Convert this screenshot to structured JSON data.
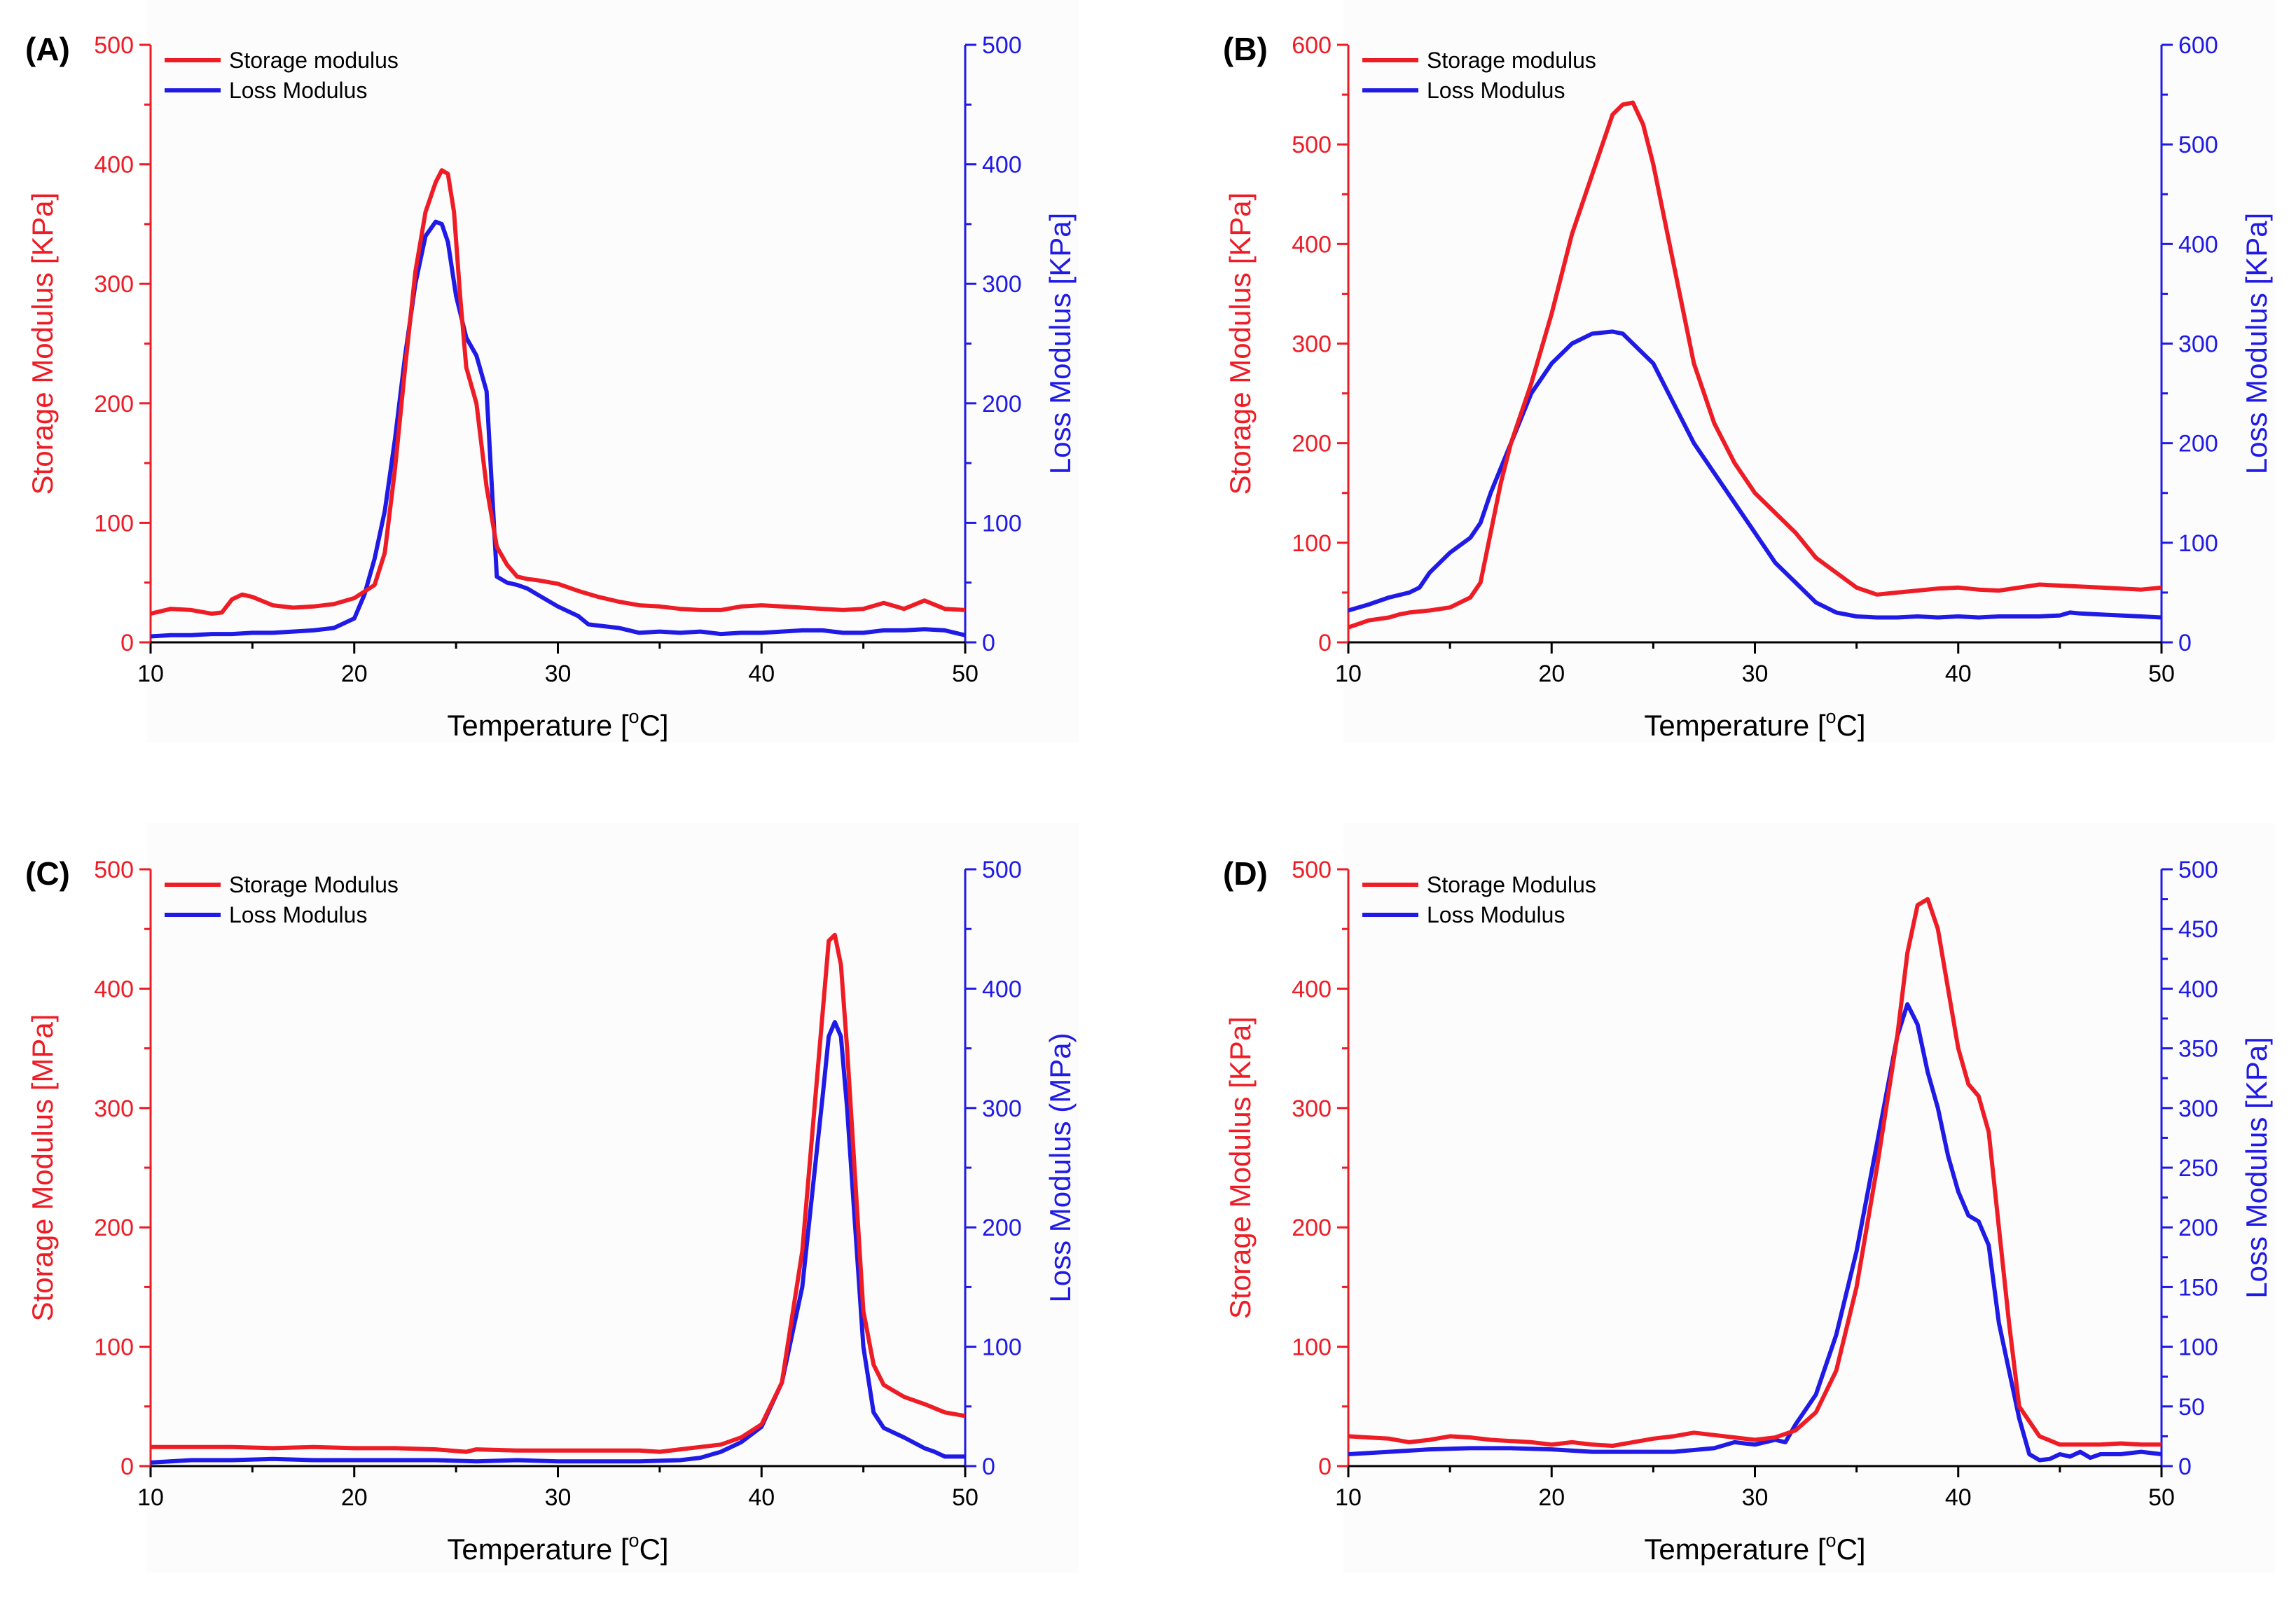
{
  "colors": {
    "storage": "#ee1c25",
    "loss": "#1f1ae6",
    "axis": "#000000"
  },
  "chart_data": [
    {
      "panel": "(A)",
      "type": "line",
      "xlabel": "Temperature [oC]",
      "xlabel_main": "Temperature [",
      "xlabel_sup": "o",
      "xlabel_end": "C]",
      "ylabel_left": "Storage Modulus [KPa]",
      "ylabel_right": "Loss Modulus [KPa]",
      "xlim": [
        10,
        50
      ],
      "ylim_left": [
        0,
        500
      ],
      "ylim_right": [
        0,
        500
      ],
      "xticks": [
        10,
        20,
        30,
        40,
        50
      ],
      "yticks_left": [
        0,
        100,
        200,
        300,
        400,
        500
      ],
      "yticks_right": [
        0,
        100,
        200,
        300,
        400,
        500
      ],
      "legend": "top-left",
      "grid": false,
      "series": [
        {
          "name": "Storage modulus",
          "axis": "left",
          "color": "#ee1c25",
          "x": [
            10,
            11,
            12,
            13,
            13.5,
            14,
            14.5,
            15,
            16,
            17,
            18,
            19,
            20,
            21,
            21.5,
            22,
            22.5,
            23,
            23.5,
            24,
            24.3,
            24.6,
            24.9,
            25.2,
            25.5,
            26,
            26.5,
            27,
            27.5,
            28,
            28.5,
            29,
            30,
            31,
            32,
            33,
            34,
            35,
            36,
            37,
            38,
            39,
            40,
            41,
            42,
            43,
            44,
            45,
            46,
            47,
            48,
            49,
            50
          ],
          "y": [
            24,
            28,
            27,
            24,
            25,
            36,
            40,
            38,
            31,
            29,
            30,
            32,
            37,
            48,
            75,
            145,
            230,
            310,
            360,
            385,
            395,
            392,
            360,
            290,
            230,
            200,
            130,
            80,
            65,
            55,
            53,
            52,
            49,
            43,
            38,
            34,
            31,
            30,
            28,
            27,
            27,
            30,
            31,
            30,
            29,
            28,
            27,
            28,
            33,
            28,
            35,
            28,
            27
          ]
        },
        {
          "name": "Loss Modulus",
          "axis": "right",
          "color": "#1f1ae6",
          "x": [
            10,
            11,
            12,
            13,
            14,
            15,
            16,
            17,
            18,
            19,
            20,
            20.5,
            21,
            21.5,
            22,
            22.5,
            23,
            23.5,
            24,
            24.3,
            24.6,
            25,
            25.5,
            26,
            26.5,
            27,
            27.5,
            28,
            28.5,
            29,
            30,
            31,
            31.5,
            32,
            33,
            34,
            35,
            36,
            37,
            38,
            39,
            40,
            41,
            42,
            43,
            44,
            45,
            46,
            47,
            48,
            49,
            50
          ],
          "y": [
            5,
            6,
            6,
            7,
            7,
            8,
            8,
            9,
            10,
            12,
            20,
            40,
            70,
            110,
            170,
            240,
            300,
            340,
            352,
            350,
            335,
            290,
            255,
            240,
            210,
            55,
            50,
            48,
            45,
            40,
            30,
            22,
            15,
            14,
            12,
            8,
            9,
            8,
            9,
            7,
            8,
            8,
            9,
            10,
            10,
            8,
            8,
            10,
            10,
            11,
            10,
            6
          ]
        }
      ]
    },
    {
      "panel": "(B)",
      "type": "line",
      "xlabel": "Temperature [oC]",
      "xlabel_main": "Temperature [",
      "xlabel_sup": "o",
      "xlabel_end": "C]",
      "ylabel_left": "Storage Modulus [KPa]",
      "ylabel_right": "Loss Modulus [KPa]",
      "xlim": [
        10,
        50
      ],
      "ylim_left": [
        0,
        600
      ],
      "ylim_right": [
        0,
        600
      ],
      "xticks": [
        10,
        20,
        30,
        40,
        50
      ],
      "yticks_left": [
        0,
        100,
        200,
        300,
        400,
        500,
        600
      ],
      "yticks_right": [
        0,
        100,
        200,
        300,
        400,
        500,
        600
      ],
      "legend": "top-left",
      "grid": false,
      "series": [
        {
          "name": "Storage modulus",
          "axis": "left",
          "color": "#ee1c25",
          "x": [
            10,
            11,
            12,
            12.5,
            13,
            14,
            15,
            16,
            16.5,
            17,
            17.5,
            18,
            19,
            20,
            21,
            22,
            23,
            23.5,
            24,
            24.5,
            25,
            26,
            27,
            28,
            29,
            30,
            31,
            32,
            33,
            34,
            35,
            36,
            37,
            38,
            39,
            40,
            41,
            42,
            43,
            44,
            45,
            46,
            47,
            48,
            49,
            50
          ],
          "y": [
            15,
            22,
            25,
            28,
            30,
            32,
            35,
            45,
            60,
            110,
            160,
            200,
            260,
            330,
            410,
            470,
            530,
            540,
            542,
            520,
            480,
            380,
            280,
            220,
            180,
            150,
            130,
            110,
            85,
            70,
            55,
            48,
            50,
            52,
            54,
            55,
            53,
            52,
            55,
            58,
            57,
            56,
            55,
            54,
            53,
            55
          ]
        },
        {
          "name": "Loss Modulus",
          "axis": "right",
          "color": "#1f1ae6",
          "x": [
            10,
            11,
            12,
            13,
            13.5,
            14,
            15,
            16,
            16.5,
            17,
            18,
            19,
            20,
            21,
            22,
            23,
            23.5,
            24,
            25,
            26,
            27,
            28,
            29,
            30,
            31,
            32,
            33,
            34,
            35,
            36,
            37,
            38,
            39,
            40,
            41,
            42,
            43,
            44,
            45,
            45.5,
            46,
            47,
            48,
            49,
            50
          ],
          "y": [
            32,
            38,
            45,
            50,
            55,
            70,
            90,
            105,
            120,
            150,
            200,
            250,
            280,
            300,
            310,
            312,
            310,
            300,
            280,
            240,
            200,
            170,
            140,
            110,
            80,
            60,
            40,
            30,
            26,
            25,
            25,
            26,
            25,
            26,
            25,
            26,
            26,
            26,
            27,
            30,
            29,
            28,
            27,
            26,
            25
          ]
        }
      ]
    },
    {
      "panel": "(C)",
      "type": "line",
      "xlabel": "Temperature [oC]",
      "xlabel_main": "Temperature [",
      "xlabel_sup": "o",
      "xlabel_end": "C]",
      "ylabel_left": "Storage Modulus [MPa]",
      "ylabel_right": "Loss Modulus (MPa)",
      "xlim": [
        10,
        50
      ],
      "ylim_left": [
        0,
        500
      ],
      "ylim_right": [
        0,
        500
      ],
      "xticks": [
        10,
        20,
        30,
        40,
        50
      ],
      "yticks_left": [
        0,
        100,
        200,
        300,
        400,
        500
      ],
      "yticks_right": [
        0,
        100,
        200,
        300,
        400,
        500
      ],
      "legend": "top-left",
      "grid": false,
      "series": [
        {
          "name": "Storage Modulus",
          "axis": "left",
          "color": "#ee1c25",
          "x": [
            10,
            12,
            14,
            16,
            18,
            20,
            22,
            24,
            25.5,
            26,
            28,
            30,
            32,
            34,
            35,
            36,
            37,
            38,
            39,
            40,
            41,
            42,
            42.5,
            43,
            43.3,
            43.6,
            43.9,
            44.2,
            44.6,
            45,
            45.5,
            46,
            47,
            48,
            49,
            50
          ],
          "y": [
            16,
            16,
            16,
            15,
            16,
            15,
            15,
            14,
            12,
            14,
            13,
            13,
            13,
            13,
            12,
            14,
            16,
            18,
            24,
            35,
            70,
            180,
            280,
            380,
            440,
            445,
            420,
            350,
            240,
            130,
            85,
            68,
            58,
            52,
            45,
            42
          ]
        },
        {
          "name": "Loss Modulus",
          "axis": "right",
          "color": "#1f1ae6",
          "x": [
            10,
            12,
            14,
            16,
            18,
            20,
            22,
            24,
            26,
            28,
            30,
            32,
            34,
            36,
            37,
            38,
            39,
            40,
            41,
            42,
            42.5,
            43,
            43.3,
            43.6,
            43.9,
            44.2,
            44.6,
            45,
            45.5,
            46,
            47,
            48,
            48.5,
            49,
            50
          ],
          "y": [
            3,
            5,
            5,
            6,
            5,
            5,
            5,
            5,
            4,
            5,
            4,
            4,
            4,
            5,
            7,
            12,
            20,
            33,
            70,
            150,
            230,
            310,
            360,
            372,
            360,
            300,
            200,
            100,
            45,
            32,
            24,
            15,
            12,
            8,
            8
          ]
        }
      ]
    },
    {
      "panel": "(D)",
      "type": "line",
      "xlabel": "Temperature [oC]",
      "xlabel_main": "Temperature [",
      "xlabel_sup": "o",
      "xlabel_end": "C]",
      "ylabel_left": "Storage Modulus [KPa]",
      "ylabel_right": "Loss Modulus [KPa]",
      "xlim": [
        10,
        50
      ],
      "ylim_left": [
        0,
        500
      ],
      "ylim_right": [
        0,
        500
      ],
      "xticks": [
        10,
        20,
        30,
        40,
        50
      ],
      "yticks_left": [
        0,
        100,
        200,
        300,
        400,
        500
      ],
      "yticks_right": [
        0,
        50,
        100,
        150,
        200,
        250,
        300,
        350,
        400,
        450,
        500
      ],
      "legend": "top-left",
      "grid": false,
      "series": [
        {
          "name": "Storage Modulus",
          "axis": "left",
          "color": "#ee1c25",
          "x": [
            10,
            11,
            12,
            13,
            14,
            15,
            16,
            17,
            18,
            19,
            20,
            21,
            22,
            23,
            24,
            25,
            26,
            27,
            28,
            29,
            30,
            31,
            32,
            33,
            34,
            35,
            36,
            37,
            37.5,
            38,
            38.5,
            39,
            39.5,
            40,
            40.5,
            41,
            41.5,
            42,
            42.5,
            43,
            44,
            45,
            46,
            47,
            48,
            49,
            50
          ],
          "y": [
            25,
            24,
            23,
            20,
            22,
            25,
            24,
            22,
            21,
            20,
            18,
            20,
            18,
            17,
            20,
            23,
            25,
            28,
            26,
            24,
            22,
            24,
            30,
            45,
            80,
            150,
            250,
            360,
            430,
            470,
            475,
            450,
            400,
            350,
            320,
            310,
            280,
            200,
            120,
            50,
            25,
            18,
            18,
            18,
            19,
            18,
            18
          ]
        },
        {
          "name": "Loss Modulus",
          "axis": "right",
          "color": "#1f1ae6",
          "x": [
            10,
            12,
            14,
            16,
            18,
            20,
            22,
            24,
            26,
            28,
            29,
            30,
            31,
            31.5,
            32,
            33,
            34,
            35,
            36,
            37,
            37.5,
            38,
            38.5,
            39,
            39.5,
            40,
            40.5,
            41,
            41.5,
            42,
            42.5,
            43,
            43.5,
            44,
            44.5,
            45,
            45.5,
            46,
            46.5,
            47,
            48,
            49,
            50
          ],
          "y": [
            10,
            12,
            14,
            15,
            15,
            14,
            12,
            12,
            12,
            15,
            20,
            18,
            22,
            20,
            35,
            60,
            110,
            180,
            270,
            360,
            387,
            370,
            330,
            300,
            260,
            230,
            210,
            205,
            185,
            120,
            80,
            40,
            10,
            5,
            6,
            10,
            8,
            12,
            7,
            10,
            10,
            12,
            10
          ]
        }
      ]
    }
  ]
}
